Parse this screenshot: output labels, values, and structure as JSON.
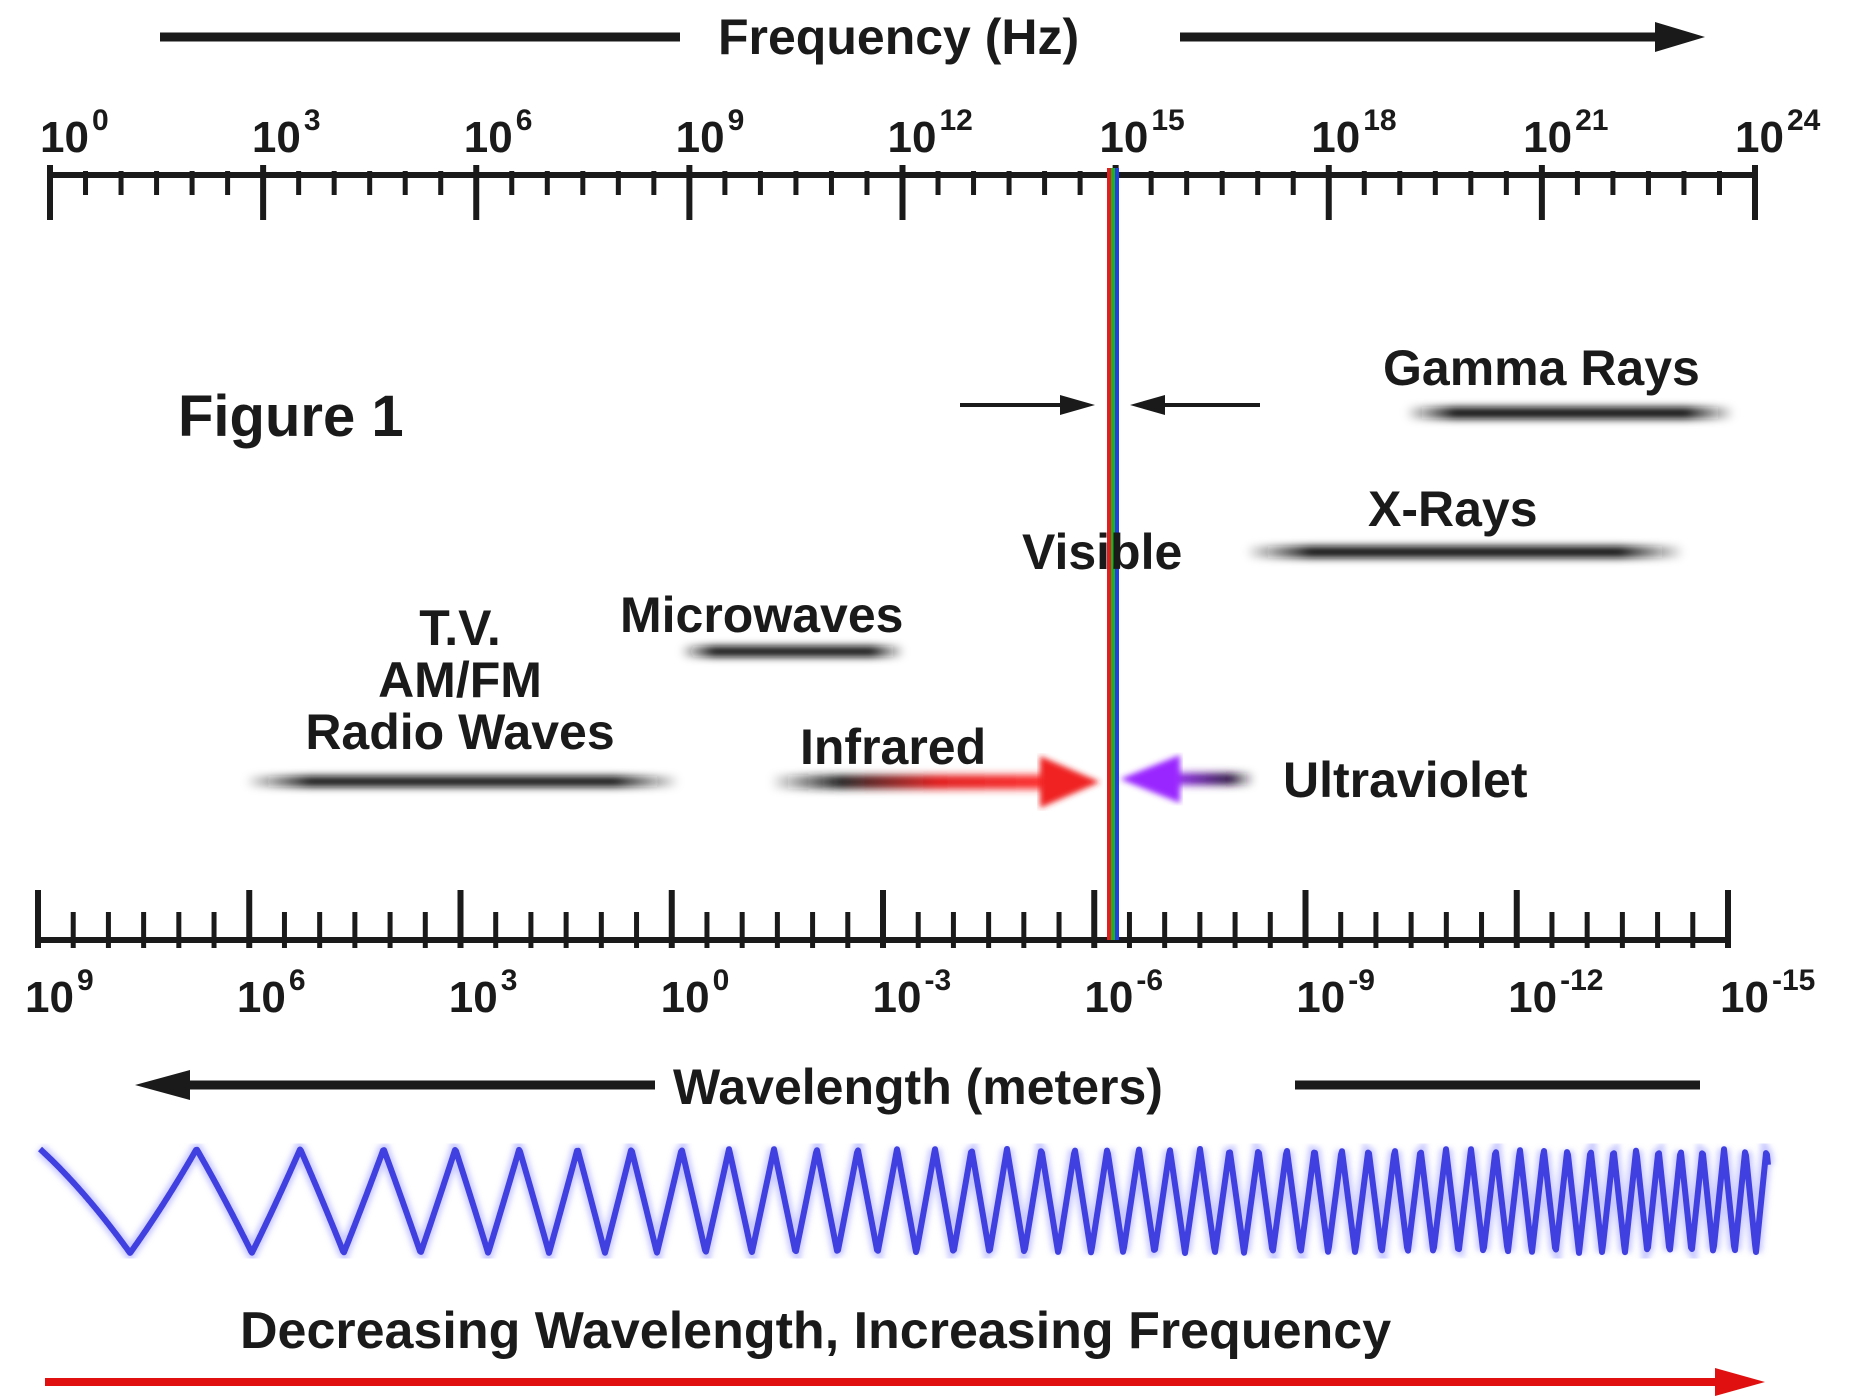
{
  "frequency_axis": {
    "title": "Frequency (Hz)",
    "ticks": [
      {
        "base": "10",
        "exp": "0"
      },
      {
        "base": "10",
        "exp": "3"
      },
      {
        "base": "10",
        "exp": "6"
      },
      {
        "base": "10",
        "exp": "9"
      },
      {
        "base": "10",
        "exp": "12"
      },
      {
        "base": "10",
        "exp": "15"
      },
      {
        "base": "10",
        "exp": "18"
      },
      {
        "base": "10",
        "exp": "21"
      },
      {
        "base": "10",
        "exp": "24"
      }
    ]
  },
  "wavelength_axis": {
    "title": "Wavelength (meters)",
    "ticks": [
      {
        "base": "10",
        "exp": "9"
      },
      {
        "base": "10",
        "exp": "6"
      },
      {
        "base": "10",
        "exp": "3"
      },
      {
        "base": "10",
        "exp": "0"
      },
      {
        "base": "10",
        "exp": "-3"
      },
      {
        "base": "10",
        "exp": "-6"
      },
      {
        "base": "10",
        "exp": "-9"
      },
      {
        "base": "10",
        "exp": "-12"
      },
      {
        "base": "10",
        "exp": "-15"
      }
    ]
  },
  "figure_label": "Figure 1",
  "bands": {
    "radio": {
      "line1": "T.V.",
      "line2": "AM/FM",
      "line3": "Radio Waves"
    },
    "microwaves": "Microwaves",
    "infrared": "Infrared",
    "visible": "Visible",
    "ultraviolet": "Ultraviolet",
    "xrays": "X-Rays",
    "gamma": "Gamma Rays"
  },
  "bottom_caption": "Decreasing Wavelength, Increasing Frequency",
  "colors": {
    "axis": "#1a1a1a",
    "wave": "#4040e0",
    "infrared_arrow": "#e02020",
    "ultraviolet_arrow": "#8a20e0",
    "bottom_arrow": "#e01010",
    "visible_red": "#e02020",
    "visible_green": "#20b020",
    "visible_blue": "#2040e0"
  }
}
